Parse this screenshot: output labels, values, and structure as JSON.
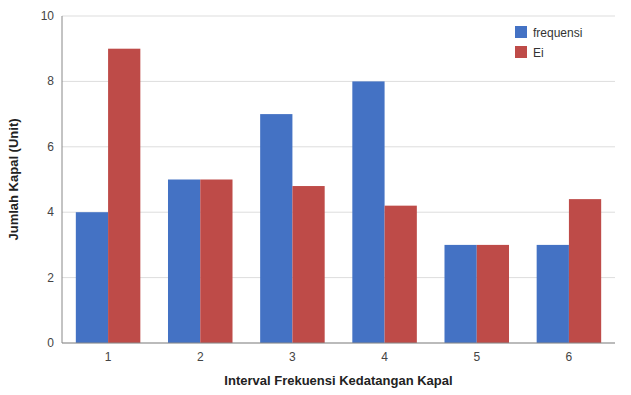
{
  "chart_data": {
    "type": "bar",
    "categories": [
      "1",
      "2",
      "3",
      "4",
      "5",
      "6"
    ],
    "series": [
      {
        "name": "frequensi",
        "color": "#4472C4",
        "values": [
          4,
          5,
          7,
          8,
          3,
          3
        ]
      },
      {
        "name": "Ei",
        "color": "#BE4B48",
        "values": [
          9,
          5,
          4.8,
          4.2,
          3,
          4.4
        ]
      }
    ],
    "x_label": "Interval Frekuensi Kedatangan Kapal",
    "y_label": "Jumlah Kapal (Unit)",
    "ylim": [
      0,
      10
    ],
    "yticks": [
      0,
      2,
      4,
      6,
      8,
      10
    ],
    "grid": true,
    "legend": "upper right"
  }
}
